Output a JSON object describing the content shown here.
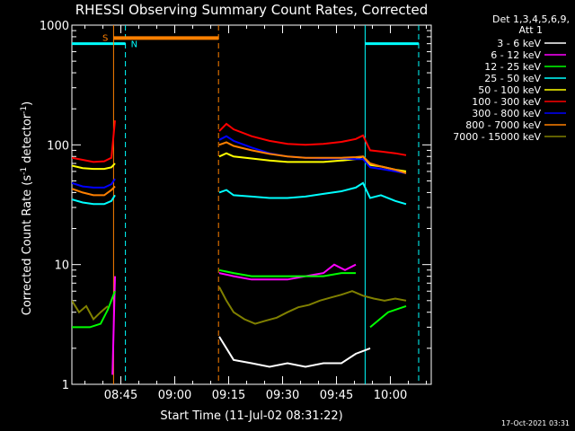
{
  "chart_data": {
    "type": "line",
    "title": "RHESSI Observing Summary Count Rates, Corrected",
    "xlabel": "Start Time (11-Jul-02 08:31:22)",
    "ylabel_main": "Corrected Count Rate (s",
    "ylabel_sup1": "-1",
    "ylabel_mid": " detector",
    "ylabel_sup2": "-1",
    "ylabel_end": ")",
    "y_scale": "log",
    "ylim": [
      1,
      1000
    ],
    "xlim_minutes": [
      0,
      100
    ],
    "y_ticks": [
      {
        "label": "1000",
        "value": 1000
      },
      {
        "label": "100",
        "value": 100
      },
      {
        "label": "10",
        "value": 10
      },
      {
        "label": "1",
        "value": 1
      }
    ],
    "x_ticks": [
      {
        "label": "08:45",
        "minutes": 13.63
      },
      {
        "label": "09:00",
        "minutes": 28.63
      },
      {
        "label": "09:15",
        "minutes": 43.63
      },
      {
        "label": "09:30",
        "minutes": 58.63
      },
      {
        "label": "09:45",
        "minutes": 73.63
      },
      {
        "label": "10:00",
        "minutes": 88.63
      }
    ],
    "legend": {
      "header1": "Det 1,3,4,5,6,9,",
      "header2": "Att 1",
      "placement": "right"
    },
    "series": [
      {
        "name": "3 - 6 keV",
        "color": "#ffffff",
        "segments": [
          [
            [
              41,
              2.5
            ],
            [
              45,
              1.6
            ],
            [
              50,
              1.5
            ],
            [
              55,
              1.4
            ],
            [
              60,
              1.5
            ],
            [
              65,
              1.4
            ],
            [
              70,
              1.5
            ],
            [
              75,
              1.5
            ],
            [
              79,
              1.8
            ],
            [
              83,
              2.0
            ]
          ]
        ]
      },
      {
        "name": "6 - 12 keV",
        "color": "#ff00ff",
        "segments": [
          [
            [
              11.3,
              1.2
            ],
            [
              12,
              8
            ]
          ],
          [
            [
              41,
              8.5
            ],
            [
              45,
              8
            ],
            [
              50,
              7.5
            ],
            [
              55,
              7.5
            ],
            [
              60,
              7.5
            ],
            [
              65,
              8.0
            ],
            [
              70,
              8.5
            ],
            [
              73,
              10
            ],
            [
              76,
              9
            ],
            [
              79,
              10
            ]
          ]
        ]
      },
      {
        "name": "12 - 25 keV",
        "color": "#00ff00",
        "segments": [
          [
            [
              0,
              3.0
            ],
            [
              5,
              3.0
            ],
            [
              8,
              3.2
            ],
            [
              10,
              4.2
            ],
            [
              12,
              6
            ]
          ],
          [
            [
              41,
              9.0
            ],
            [
              45,
              8.5
            ],
            [
              50,
              8.0
            ],
            [
              55,
              8.0
            ],
            [
              60,
              8.0
            ],
            [
              65,
              8.0
            ],
            [
              70,
              8.0
            ],
            [
              75,
              8.5
            ],
            [
              79,
              8.5
            ]
          ],
          [
            [
              83,
              3.0
            ],
            [
              88,
              4.0
            ],
            [
              93,
              4.5
            ]
          ]
        ]
      },
      {
        "name": "25 - 50 keV",
        "color": "#00ffff",
        "segments": [
          [
            [
              0,
              35
            ],
            [
              3,
              33
            ],
            [
              6,
              32
            ],
            [
              9,
              32
            ],
            [
              11,
              34
            ],
            [
              12,
              38
            ]
          ],
          [
            [
              41,
              40
            ],
            [
              43,
              42
            ],
            [
              45,
              38
            ],
            [
              50,
              37
            ],
            [
              55,
              36
            ],
            [
              60,
              36
            ],
            [
              65,
              37
            ],
            [
              70,
              39
            ],
            [
              75,
              41
            ],
            [
              79,
              44
            ],
            [
              81,
              48
            ],
            [
              83,
              36
            ],
            [
              86,
              38
            ],
            [
              90,
              34
            ],
            [
              93,
              32
            ]
          ]
        ]
      },
      {
        "name": "50 - 100 keV",
        "color": "#ffff00",
        "segments": [
          [
            [
              0,
              67
            ],
            [
              3,
              64
            ],
            [
              6,
              63
            ],
            [
              9,
              63
            ],
            [
              11,
              65
            ],
            [
              12,
              70
            ]
          ],
          [
            [
              41,
              80
            ],
            [
              43,
              85
            ],
            [
              45,
              80
            ],
            [
              50,
              77
            ],
            [
              55,
              74
            ],
            [
              60,
              72
            ],
            [
              65,
              72
            ],
            [
              70,
              72
            ],
            [
              75,
              74
            ],
            [
              79,
              76
            ],
            [
              81,
              80
            ],
            [
              83,
              68
            ],
            [
              86,
              66
            ],
            [
              90,
              62
            ],
            [
              93,
              60
            ]
          ]
        ]
      },
      {
        "name": "100 - 300 keV",
        "color": "#ff0000",
        "segments": [
          [
            [
              0,
              78
            ],
            [
              3,
              75
            ],
            [
              6,
              72
            ],
            [
              9,
              73
            ],
            [
              11,
              78
            ],
            [
              12,
              160
            ]
          ],
          [
            [
              41,
              130
            ],
            [
              43,
              150
            ],
            [
              45,
              135
            ],
            [
              50,
              118
            ],
            [
              55,
              108
            ],
            [
              60,
              102
            ],
            [
              65,
              100
            ],
            [
              70,
              102
            ],
            [
              75,
              106
            ],
            [
              79,
              112
            ],
            [
              81,
              120
            ],
            [
              83,
              90
            ],
            [
              86,
              88
            ],
            [
              90,
              85
            ],
            [
              93,
              82
            ]
          ]
        ]
      },
      {
        "name": "300 - 800 keV",
        "color": "#0000ff",
        "segments": [
          [
            [
              0,
              48
            ],
            [
              3,
              45
            ],
            [
              6,
              44
            ],
            [
              9,
              44
            ],
            [
              11,
              47
            ],
            [
              12,
              52
            ]
          ],
          [
            [
              41,
              110
            ],
            [
              43,
              118
            ],
            [
              45,
              108
            ],
            [
              50,
              95
            ],
            [
              55,
              85
            ],
            [
              60,
              80
            ],
            [
              65,
              78
            ],
            [
              70,
              77
            ],
            [
              75,
              77
            ],
            [
              79,
              76
            ],
            [
              81,
              76
            ],
            [
              83,
              65
            ],
            [
              86,
              63
            ],
            [
              90,
              60
            ],
            [
              93,
              58
            ]
          ]
        ]
      },
      {
        "name": "800 - 7000 keV",
        "color": "#ff8000",
        "segments": [
          [
            [
              0,
              43
            ],
            [
              3,
              40
            ],
            [
              6,
              38
            ],
            [
              9,
              38
            ],
            [
              11,
              42
            ],
            [
              12,
              45
            ]
          ],
          [
            [
              41,
              100
            ],
            [
              43,
              105
            ],
            [
              45,
              98
            ],
            [
              50,
              90
            ],
            [
              55,
              84
            ],
            [
              60,
              80
            ],
            [
              65,
              78
            ],
            [
              70,
              78
            ],
            [
              75,
              78
            ],
            [
              79,
              79
            ],
            [
              81,
              80
            ],
            [
              83,
              70
            ],
            [
              86,
              66
            ],
            [
              90,
              62
            ],
            [
              93,
              58
            ]
          ]
        ]
      },
      {
        "name": "7000 - 15000 keV",
        "color": "#808000",
        "segments": [
          [
            [
              0,
              5.0
            ],
            [
              2,
              4.0
            ],
            [
              4,
              4.5
            ],
            [
              6,
              3.5
            ],
            [
              8,
              4.0
            ],
            [
              10,
              4.5
            ]
          ],
          [
            [
              41,
              6.5
            ],
            [
              43,
              5.0
            ],
            [
              45,
              4.0
            ],
            [
              48,
              3.5
            ],
            [
              51,
              3.2
            ],
            [
              54,
              3.4
            ],
            [
              57,
              3.6
            ],
            [
              60,
              4.0
            ],
            [
              63,
              4.4
            ],
            [
              66,
              4.6
            ],
            [
              69,
              5.0
            ],
            [
              72,
              5.3
            ],
            [
              75,
              5.6
            ],
            [
              78,
              6.0
            ],
            [
              81,
              5.5
            ],
            [
              84,
              5.2
            ],
            [
              87,
              5.0
            ],
            [
              90,
              5.2
            ],
            [
              93,
              5.0
            ]
          ]
        ]
      }
    ],
    "markers": {
      "saa_label": "S",
      "night_label": "N",
      "saa_color": "#ff8000",
      "night_color": "#00ffff",
      "saa_start_min": 11.6,
      "saa_end_min": 40.8,
      "night_spans_min": [
        [
          0,
          14.9
        ],
        [
          81.6,
          96.5
        ]
      ]
    },
    "timestamp": "17-Oct-2021 03:31"
  }
}
